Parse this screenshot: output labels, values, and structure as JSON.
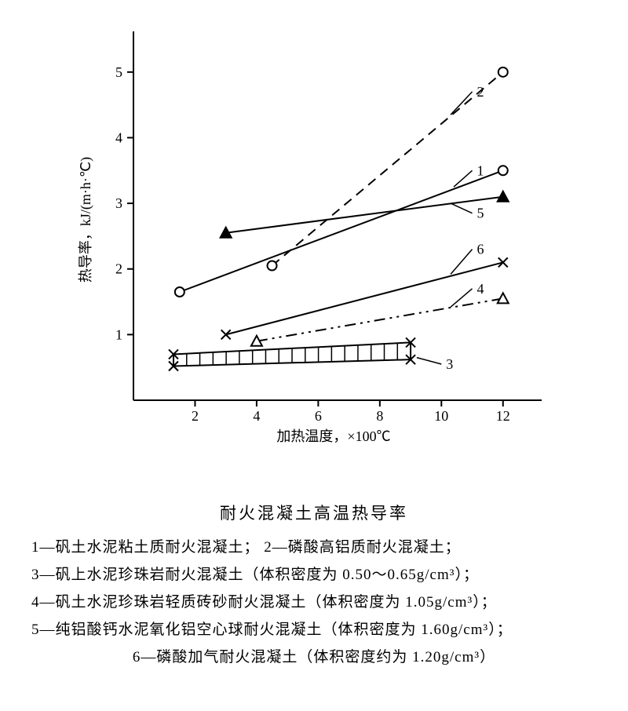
{
  "chart": {
    "type": "line",
    "xlim": [
      0,
      13
    ],
    "ylim": [
      0,
      5.5
    ],
    "xticks": [
      2,
      4,
      6,
      8,
      10,
      12
    ],
    "yticks": [
      1,
      2,
      3,
      4,
      5
    ],
    "xlabel": "加热温度，×100℃",
    "ylabel": "热导率，kJ/(m·h·℃)",
    "label_fontsize": 18,
    "tick_fontsize": 18,
    "background_color": "#ffffff",
    "axis_color": "#000000",
    "line_color": "#000000",
    "line_width": 2,
    "series": [
      {
        "id": 1,
        "style": "solid",
        "marker": "circle-open",
        "points": [
          [
            1.5,
            1.65
          ],
          [
            12,
            3.5
          ]
        ],
        "callout": {
          "at": [
            11,
            3.5
          ],
          "to": [
            10.4,
            3.25
          ]
        }
      },
      {
        "id": 2,
        "style": "dashed",
        "marker": "circle-open",
        "points": [
          [
            4.5,
            2.05
          ],
          [
            12,
            5.0
          ]
        ],
        "callout": {
          "at": [
            11,
            4.7
          ],
          "to": [
            10.3,
            4.35
          ]
        }
      },
      {
        "id": 3,
        "style": "hatched-band",
        "marker": "x",
        "upper": [
          [
            1.3,
            0.7
          ],
          [
            9,
            0.88
          ]
        ],
        "lower": [
          [
            1.3,
            0.52
          ],
          [
            9,
            0.62
          ]
        ],
        "callout": {
          "at": [
            10,
            0.55
          ],
          "to": [
            9.2,
            0.65
          ]
        }
      },
      {
        "id": 4,
        "style": "dash-dot-dot",
        "marker": "triangle-open",
        "points": [
          [
            4,
            0.9
          ],
          [
            12,
            1.55
          ]
        ],
        "callout": {
          "at": [
            11,
            1.7
          ],
          "to": [
            10.3,
            1.42
          ]
        }
      },
      {
        "id": 5,
        "style": "solid",
        "marker": "triangle-filled",
        "points": [
          [
            3,
            2.55
          ],
          [
            12,
            3.1
          ]
        ],
        "callout": {
          "at": [
            11,
            2.85
          ],
          "to": [
            10.3,
            3.0
          ]
        }
      },
      {
        "id": 6,
        "style": "solid",
        "marker": "x",
        "points": [
          [
            3,
            1.0
          ],
          [
            12,
            2.1
          ]
        ],
        "callout": {
          "at": [
            11,
            2.3
          ],
          "to": [
            10.3,
            1.92
          ]
        }
      }
    ]
  },
  "caption": {
    "title": "耐火混凝土高温热导率",
    "l1a": "1—矾土水泥粘土质耐火混凝土；",
    "l1b": "2—磷酸高铝质耐火混凝土；",
    "l2": "3—矾上水泥珍珠岩耐火混凝土（体积密度为 0.50～0.65g/cm³）；",
    "l3": "4—矾土水泥珍珠岩轻质砖砂耐火混凝土（体积密度为 1.05g/cm³）；",
    "l4": "5—纯铝酸钙水泥氧化铝空心球耐火混凝土（体积密度为 1.60g/cm³）；",
    "l5": "6—磷酸加气耐火混凝土（体积密度约为 1.20g/cm³）"
  }
}
